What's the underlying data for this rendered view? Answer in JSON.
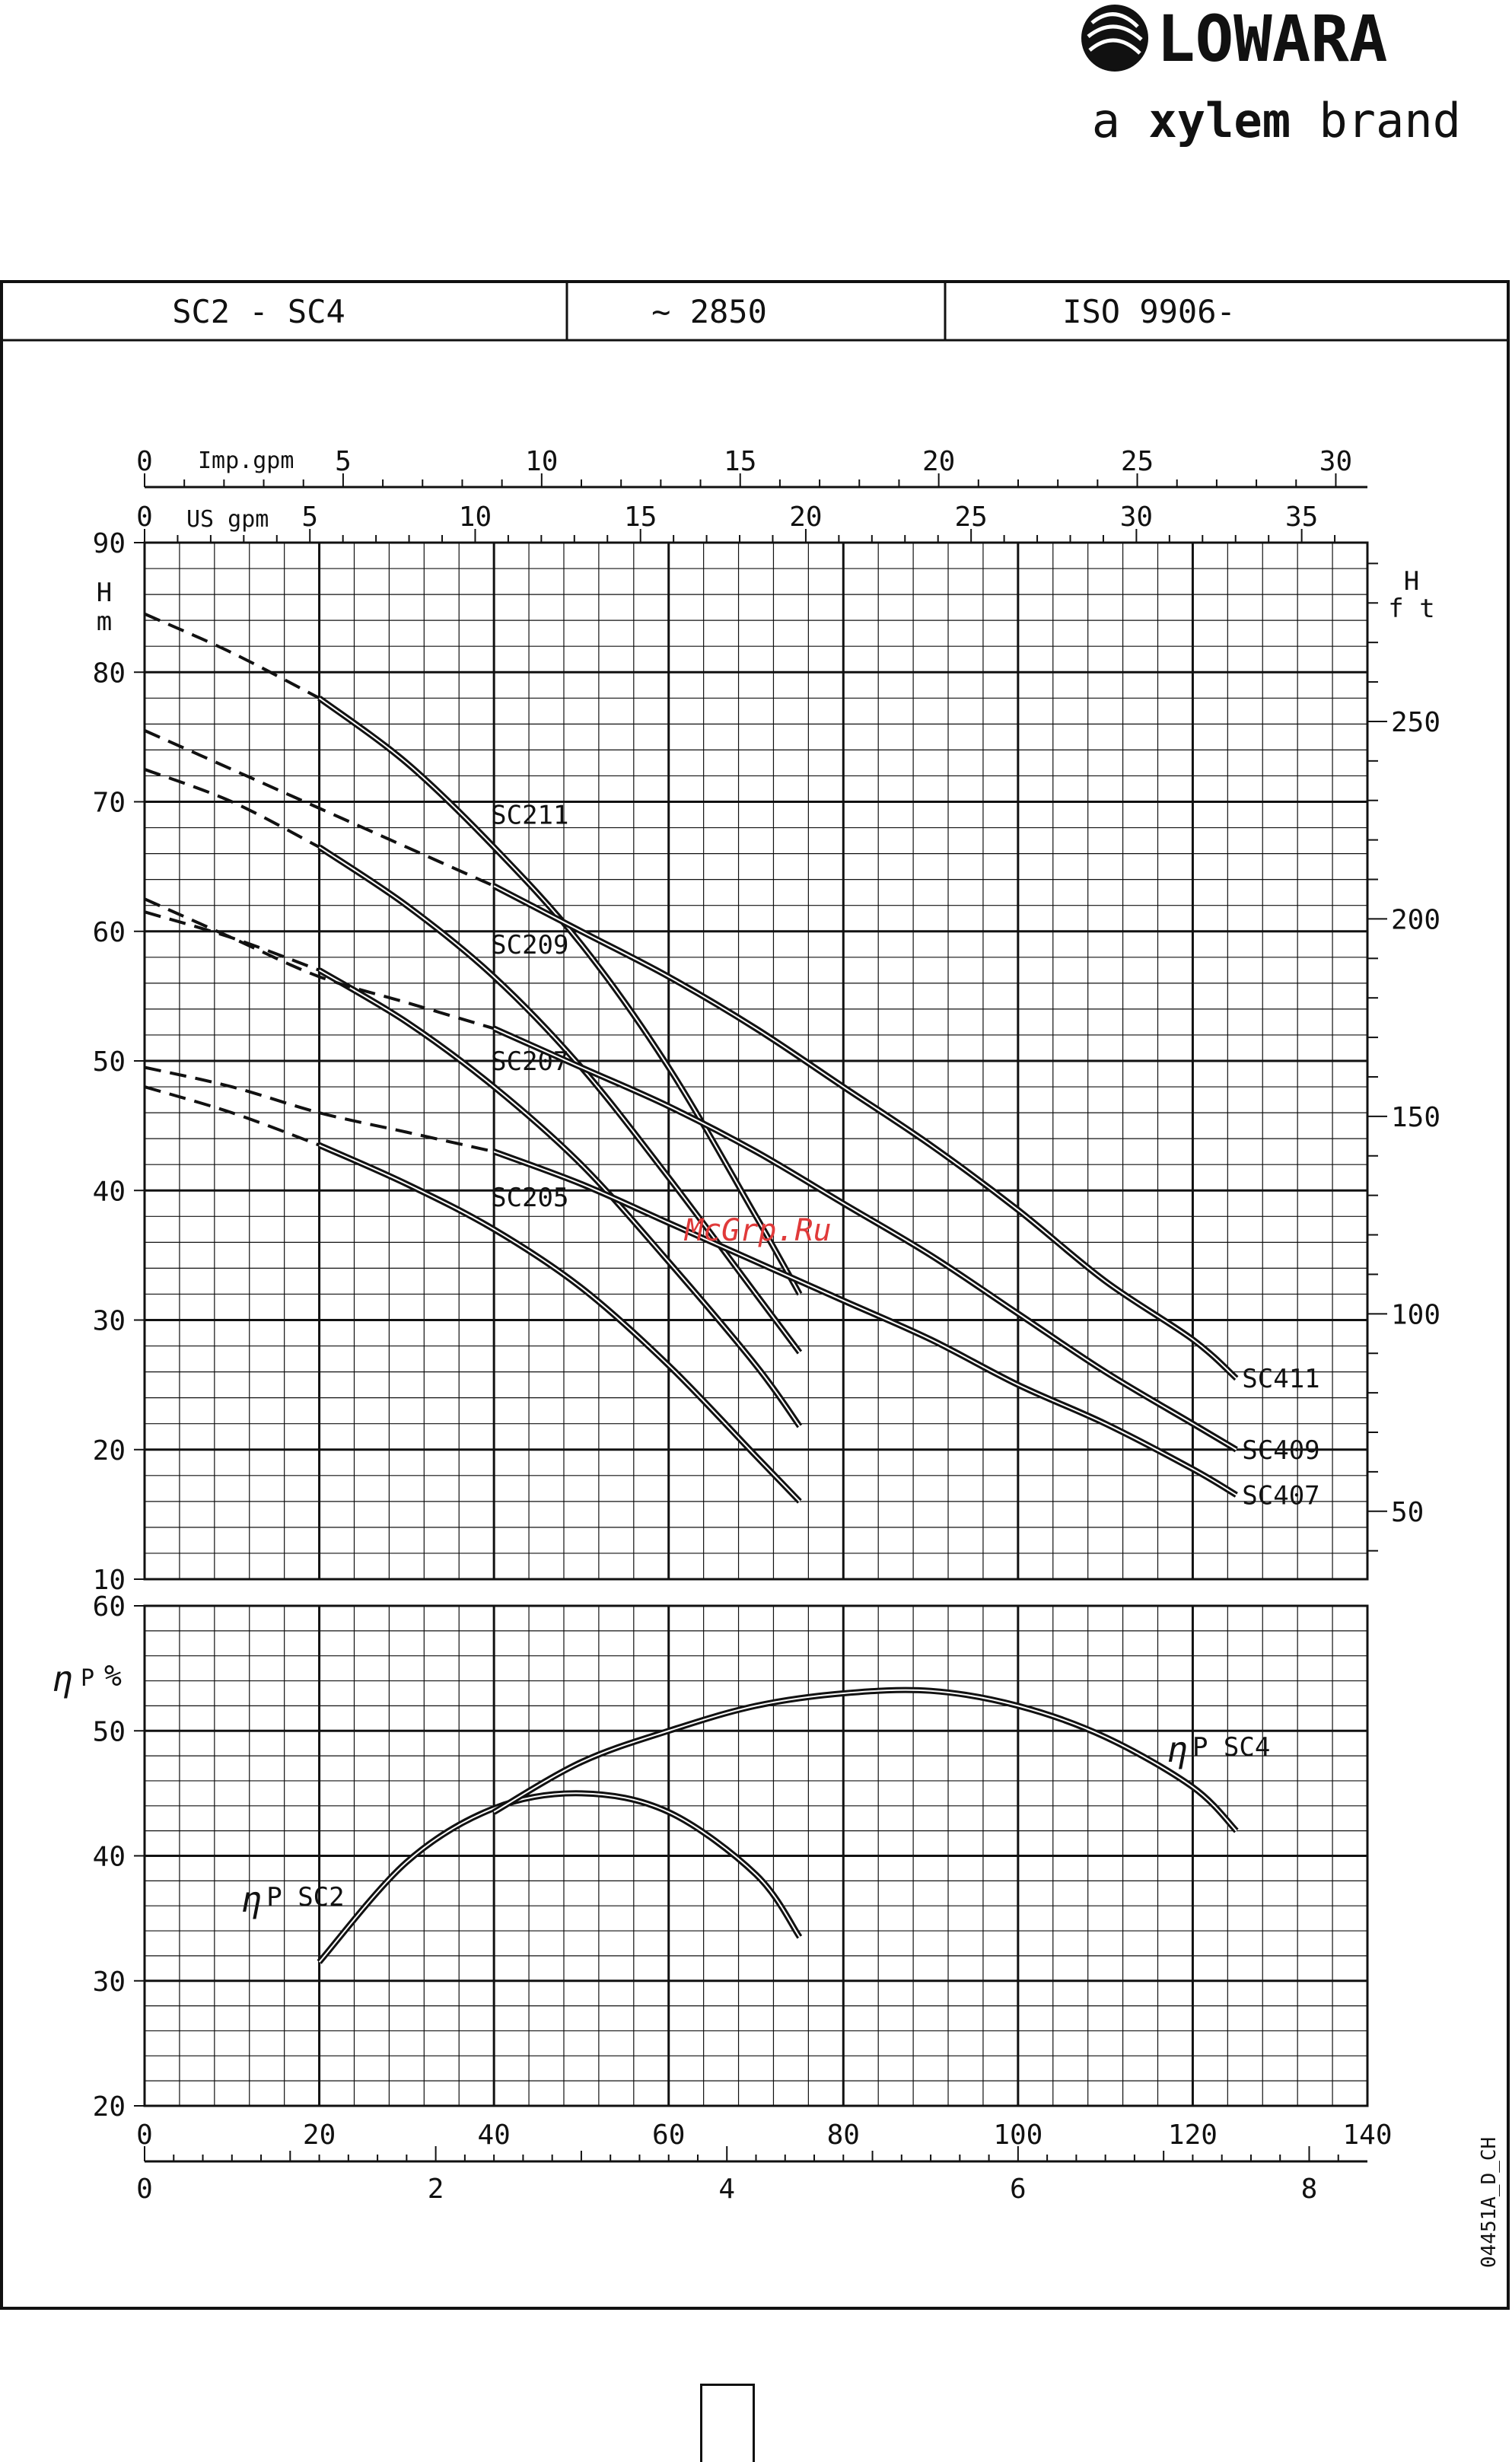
{
  "brand": {
    "name": "LOWARA",
    "tagline_prefix": "a",
    "tagline_brand": "xylem",
    "tagline_suffix": "brand"
  },
  "header": {
    "model": "SC2 - SC4",
    "speed": "~ 2850",
    "standard": "ISO 9906-"
  },
  "watermark": "McGrp.Ru",
  "doc_code": "04451A_D_CH",
  "colors": {
    "ink": "#111111",
    "watermark": "#e03a3a",
    "background": "#ffffff"
  },
  "chart_data": [
    {
      "type": "line",
      "title": "",
      "xlabel": "",
      "ylabel": "H m",
      "ylabel_right": "H ft",
      "x_unit_top1": "Imp.gpm",
      "x_unit_top2": "US gpm",
      "xlim": [
        0,
        140
      ],
      "ylim": [
        10,
        90
      ],
      "y_ticks": [
        10,
        20,
        30,
        40,
        50,
        60,
        70,
        80,
        90
      ],
      "y_right_ticks": [
        50,
        100,
        150,
        200,
        250
      ],
      "x_top1_ticks": [
        0,
        5,
        10,
        15,
        20,
        25,
        30
      ],
      "x_top2_ticks": [
        0,
        5,
        10,
        15,
        20,
        25,
        30,
        35
      ],
      "grid": true,
      "dashed_segment": "from x=0 to start of solid line",
      "series": [
        {
          "name": "SC211",
          "label_at": [
            40,
            69
          ],
          "solid_from": 20,
          "x": [
            0,
            10,
            20,
            30,
            40,
            50,
            60,
            70,
            75
          ],
          "y": [
            84.5,
            81.5,
            78,
            73,
            66.5,
            59,
            49.5,
            38,
            32
          ]
        },
        {
          "name": "SC209",
          "label_at": [
            40,
            59
          ],
          "solid_from": 20,
          "x": [
            0,
            10,
            20,
            30,
            40,
            50,
            60,
            70,
            75
          ],
          "y": [
            72.5,
            70,
            66.5,
            62,
            56.5,
            49.5,
            41,
            32,
            27.5
          ]
        },
        {
          "name": "SC207",
          "label_at": [
            40,
            50
          ],
          "solid_from": 20,
          "x": [
            0,
            10,
            20,
            30,
            40,
            50,
            60,
            70,
            75
          ],
          "y": [
            61.5,
            59.5,
            57,
            53,
            48,
            42,
            34.5,
            26.5,
            21.8
          ]
        },
        {
          "name": "SC205",
          "label_at": [
            40,
            39.5
          ],
          "solid_from": 20,
          "x": [
            0,
            10,
            20,
            30,
            40,
            50,
            60,
            70,
            75
          ],
          "y": [
            48,
            46,
            43.5,
            40.5,
            37,
            32.5,
            26.5,
            19.5,
            16
          ]
        },
        {
          "name": "SC411",
          "label_at": [
            126,
            25.5
          ],
          "solid_from": 40,
          "x": [
            0,
            10,
            20,
            30,
            40,
            50,
            60,
            70,
            80,
            90,
            100,
            110,
            120,
            125
          ],
          "y": [
            75.5,
            72.5,
            69.5,
            66.5,
            63.5,
            60,
            56.5,
            52.5,
            48,
            43.5,
            38.5,
            33,
            28.5,
            25.5
          ]
        },
        {
          "name": "SC409",
          "label_at": [
            126,
            20
          ],
          "solid_from": 40,
          "x": [
            0,
            10,
            20,
            30,
            40,
            50,
            60,
            70,
            80,
            90,
            100,
            110,
            120,
            125
          ],
          "y": [
            62.5,
            59.5,
            56.5,
            54.5,
            52.5,
            49.5,
            46.5,
            43,
            39,
            35,
            30.5,
            26,
            22,
            20
          ]
        },
        {
          "name": "SC407",
          "label_at": [
            126,
            16.5
          ],
          "solid_from": 40,
          "x": [
            0,
            10,
            20,
            30,
            40,
            50,
            60,
            70,
            80,
            90,
            100,
            110,
            120,
            125
          ],
          "y": [
            49.5,
            48,
            46,
            44.5,
            43,
            40.5,
            37.5,
            34.5,
            31.5,
            28.5,
            25,
            22,
            18.5,
            16.5
          ]
        }
      ]
    },
    {
      "type": "line",
      "title": "",
      "ylabel": "η P %",
      "xlabel": "",
      "xlim": [
        0,
        140
      ],
      "ylim": [
        20,
        60
      ],
      "x_ticks": [
        0,
        20,
        40,
        60,
        80,
        100,
        120,
        140
      ],
      "y_ticks": [
        20,
        30,
        40,
        50,
        60
      ],
      "x_secondary_ticks": [
        0,
        2,
        4,
        6,
        8
      ],
      "x_secondary_max": 8.4,
      "grid": true,
      "series": [
        {
          "name": "η P SC2",
          "label_text": "P SC2",
          "label_at": [
            11,
            36.5
          ],
          "x": [
            20,
            30,
            40,
            50,
            60,
            70,
            75
          ],
          "y": [
            31.5,
            39.5,
            43.8,
            45,
            43.5,
            38.5,
            33.5
          ]
        },
        {
          "name": "η P SC4",
          "label_text": "P SC4",
          "label_at": [
            117,
            48.5
          ],
          "x": [
            40,
            50,
            60,
            70,
            80,
            90,
            100,
            110,
            120,
            125
          ],
          "y": [
            43.5,
            47.5,
            50,
            52,
            53,
            53.2,
            52,
            49.5,
            45.5,
            42
          ]
        }
      ]
    }
  ]
}
